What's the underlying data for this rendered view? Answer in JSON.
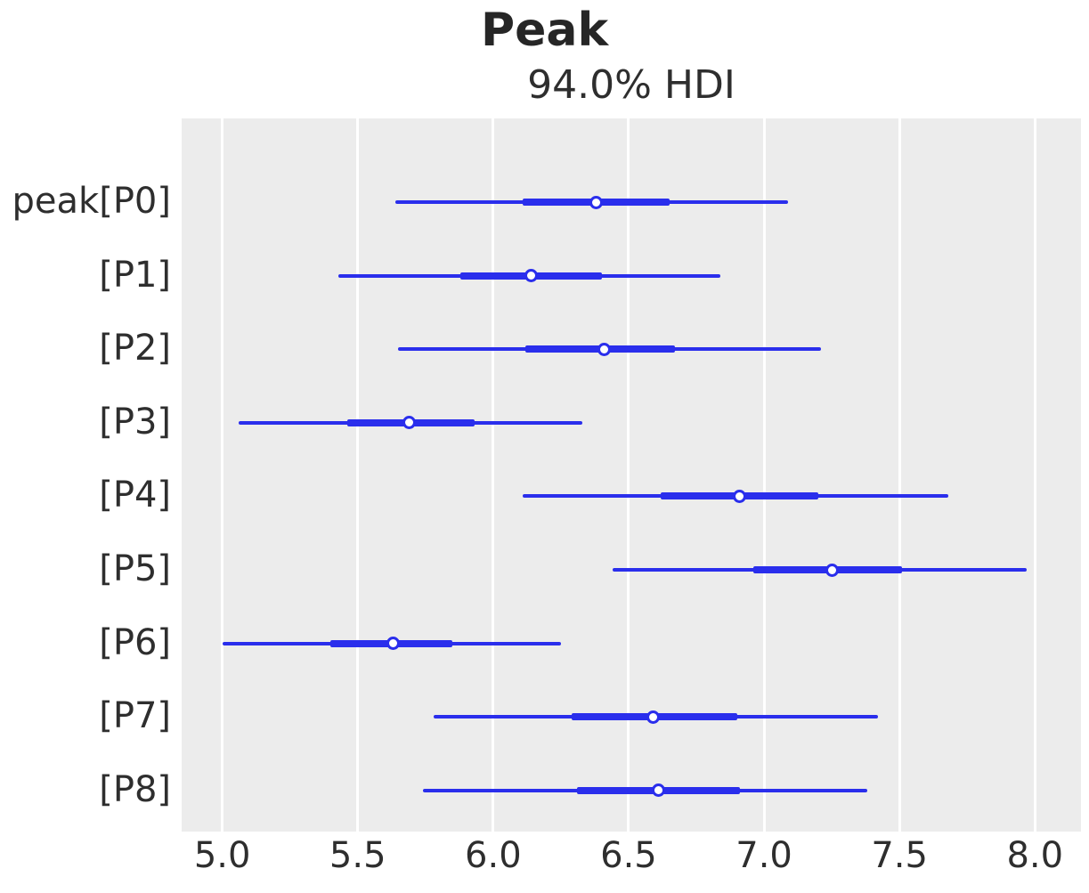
{
  "title": "Peak",
  "subtitle": "94.0% HDI",
  "colors": {
    "line": "#2a2eec",
    "plot_background": "#ececec",
    "gridline": "#ffffff",
    "title_text": "#262626",
    "tick_text": "#2e2e2e"
  },
  "chart_data": {
    "type": "forest",
    "title": "Peak",
    "subtitle": "94.0% HDI",
    "hdi_probability": 0.94,
    "xlabel": "",
    "ylabel": "",
    "xlim": [
      4.85,
      8.17
    ],
    "xticks": [
      5.0,
      5.5,
      6.0,
      6.5,
      7.0,
      7.5,
      8.0
    ],
    "grid": "vertical-white-on-gray",
    "legend": "none",
    "rows": [
      {
        "label": "peak[P0]",
        "hdi_lower": 5.64,
        "iqr_lower": 6.11,
        "median": 6.38,
        "iqr_upper": 6.65,
        "hdi_upper": 7.09
      },
      {
        "label": "[P1]",
        "hdi_lower": 5.43,
        "iqr_lower": 5.88,
        "median": 6.14,
        "iqr_upper": 6.4,
        "hdi_upper": 6.84
      },
      {
        "label": "[P2]",
        "hdi_lower": 5.65,
        "iqr_lower": 6.12,
        "median": 6.41,
        "iqr_upper": 6.67,
        "hdi_upper": 7.21
      },
      {
        "label": "[P3]",
        "hdi_lower": 5.06,
        "iqr_lower": 5.46,
        "median": 5.69,
        "iqr_upper": 5.93,
        "hdi_upper": 6.33
      },
      {
        "label": "[P4]",
        "hdi_lower": 6.11,
        "iqr_lower": 6.62,
        "median": 6.91,
        "iqr_upper": 7.2,
        "hdi_upper": 7.68
      },
      {
        "label": "[P5]",
        "hdi_lower": 6.44,
        "iqr_lower": 6.96,
        "median": 7.25,
        "iqr_upper": 7.51,
        "hdi_upper": 7.97
      },
      {
        "label": "[P6]",
        "hdi_lower": 5.0,
        "iqr_lower": 5.4,
        "median": 5.63,
        "iqr_upper": 5.85,
        "hdi_upper": 6.25
      },
      {
        "label": "[P7]",
        "hdi_lower": 5.78,
        "iqr_lower": 6.29,
        "median": 6.59,
        "iqr_upper": 6.9,
        "hdi_upper": 7.42
      },
      {
        "label": "[P8]",
        "hdi_lower": 5.74,
        "iqr_lower": 6.31,
        "median": 6.61,
        "iqr_upper": 6.91,
        "hdi_upper": 7.38
      }
    ]
  }
}
